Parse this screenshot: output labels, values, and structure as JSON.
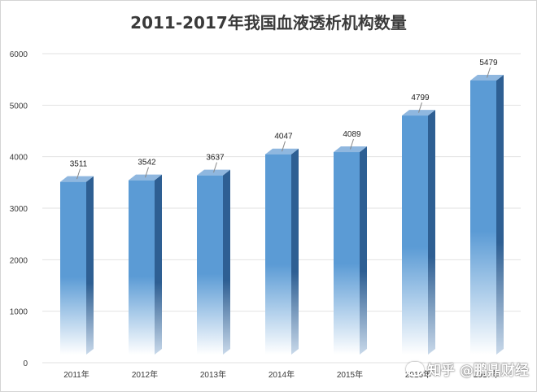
{
  "chart_data": {
    "type": "bar",
    "title": "2011-2017年我国血液透析机构数量",
    "categories": [
      "2011年",
      "2012年",
      "2013年",
      "2014年",
      "2015年",
      "2016年",
      "2017年"
    ],
    "values": [
      3511,
      3542,
      3637,
      4047,
      4089,
      4799,
      5479
    ],
    "data_labels": [
      "3511",
      "3542",
      "3637",
      "4047",
      "4089",
      "4799",
      "5479"
    ],
    "ylim": [
      0,
      6000
    ],
    "yticks": [
      0,
      1000,
      2000,
      3000,
      4000,
      5000,
      6000
    ],
    "ytick_labels": [
      "0",
      "1000",
      "2000",
      "3000",
      "4000",
      "5000",
      "6000"
    ],
    "grid": true,
    "legend": "none",
    "colors": {
      "bar_front": "#5b9bd5",
      "bar_side": "#2e5f93",
      "bar_top": "#8fb7df",
      "grid": "#e2e2e2"
    }
  },
  "watermark": {
    "text": "知乎 @鹏鼎财经",
    "icon": "zhihu-logo-icon"
  }
}
